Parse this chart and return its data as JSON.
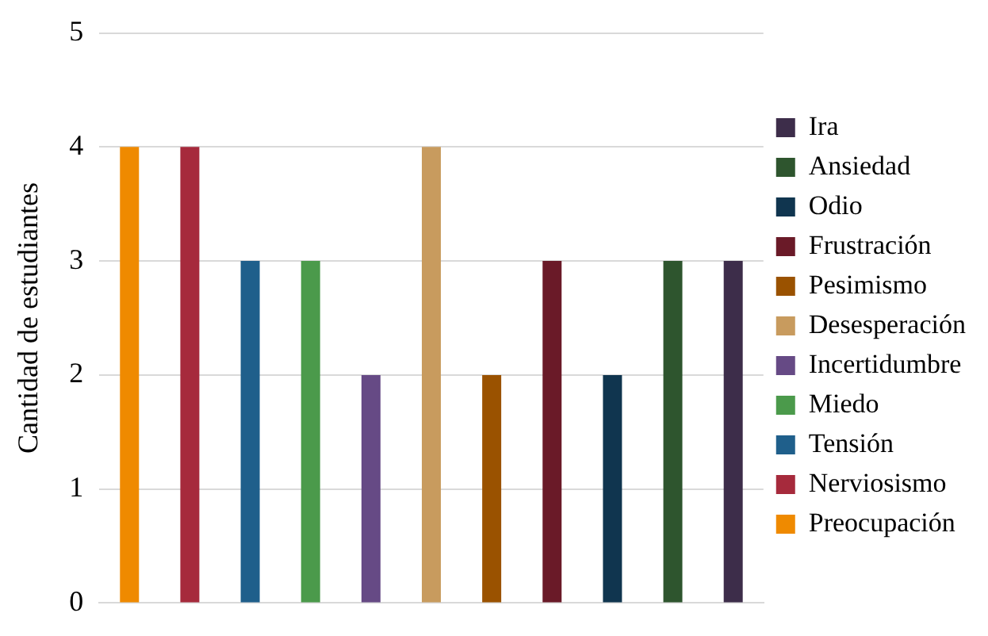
{
  "chart_data": {
    "type": "bar",
    "ylabel": "Cantidad de estudiantes",
    "categories": [
      null,
      null,
      null,
      null,
      null,
      null,
      null,
      null,
      null,
      null,
      null
    ],
    "series": [
      {
        "name": "Preocupación",
        "color": "#ef8a00",
        "values": [
          4,
          null,
          null,
          null,
          null,
          null,
          null,
          null,
          null,
          null,
          null
        ]
      },
      {
        "name": "Nerviosismo",
        "color": "#a62a3c",
        "values": [
          null,
          4,
          null,
          null,
          null,
          null,
          null,
          null,
          null,
          null,
          null
        ]
      },
      {
        "name": "Tensión",
        "color": "#1f5f8b",
        "values": [
          null,
          null,
          3,
          null,
          null,
          null,
          null,
          null,
          null,
          null,
          null
        ]
      },
      {
        "name": "Miedo",
        "color": "#4b9a4b",
        "values": [
          null,
          null,
          null,
          3,
          null,
          null,
          null,
          null,
          null,
          null,
          null
        ]
      },
      {
        "name": "Incertidumbre",
        "color": "#664a85",
        "values": [
          null,
          null,
          null,
          null,
          2,
          null,
          null,
          null,
          null,
          null,
          null
        ]
      },
      {
        "name": "Desesperación",
        "color": "#c89b5e",
        "values": [
          null,
          null,
          null,
          null,
          null,
          4,
          null,
          null,
          null,
          null,
          null
        ]
      },
      {
        "name": "Pesimismo",
        "color": "#9a5200",
        "values": [
          null,
          null,
          null,
          null,
          null,
          null,
          2,
          null,
          null,
          null,
          null
        ]
      },
      {
        "name": "Frustración",
        "color": "#6a1a28",
        "values": [
          null,
          null,
          null,
          null,
          null,
          null,
          null,
          3,
          null,
          null,
          null
        ]
      },
      {
        "name": "Odio",
        "color": "#10354f",
        "values": [
          null,
          null,
          null,
          null,
          null,
          null,
          null,
          null,
          2,
          null,
          null
        ]
      },
      {
        "name": "Ansiedad",
        "color": "#2e552e",
        "values": [
          null,
          null,
          null,
          null,
          null,
          null,
          null,
          null,
          null,
          3,
          null
        ]
      },
      {
        "name": "Ira",
        "color": "#3d2d4a",
        "values": [
          null,
          null,
          null,
          null,
          null,
          null,
          null,
          null,
          null,
          null,
          3
        ]
      }
    ],
    "ylim": [
      0,
      5
    ],
    "yticks": [
      0,
      1,
      2,
      3,
      4,
      5
    ],
    "grid": "y",
    "legend": "right",
    "tick_labels": "y"
  }
}
